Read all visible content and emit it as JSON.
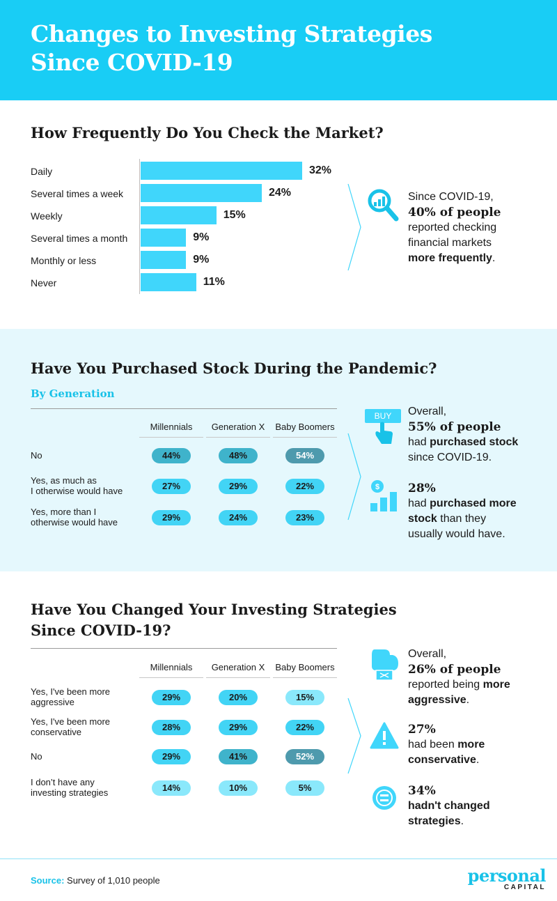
{
  "header": {
    "title_line1": "Changes to Investing Strategies",
    "title_line2": "Since COVID-19"
  },
  "colors": {
    "header_bg": "#19cdf5",
    "bar": "#40d6fb",
    "band_bg": "#e5f8fd",
    "accent": "#19c2e8"
  },
  "section1": {
    "title": "How Frequently Do You Check the Market?",
    "callout": {
      "line1": "Since COVID-19,",
      "line2": "40% of people",
      "line3": "reported checking",
      "line4": "financial markets",
      "line5": "more frequently",
      "line5_tail": "."
    }
  },
  "chart_data": [
    {
      "type": "bar",
      "orientation": "horizontal",
      "title": "How Frequently Do You Check the Market?",
      "categories": [
        "Daily",
        "Several times a week",
        "Weekly",
        "Several times a month",
        "Monthly or less",
        "Never"
      ],
      "values": [
        32,
        24,
        15,
        9,
        9,
        11
      ],
      "value_labels": [
        "32%",
        "24%",
        "15%",
        "9%",
        "9%",
        "11%"
      ],
      "unit": "%"
    },
    {
      "type": "table",
      "title": "Have You Purchased Stock During the Pandemic?",
      "subtitle": "By Generation",
      "columns": [
        "Millennials",
        "Generation X",
        "Baby Boomers"
      ],
      "rows": [
        {
          "label_line1": "No",
          "label_line2": "",
          "values": [
            "44%",
            "48%",
            "54%"
          ],
          "levels": [
            44,
            48,
            54
          ]
        },
        {
          "label_line1": "Yes, as much as",
          "label_line2": "I otherwise would have",
          "values": [
            "27%",
            "29%",
            "22%"
          ],
          "levels": [
            27,
            29,
            22
          ]
        },
        {
          "label_line1": "Yes, more than I",
          "label_line2": "otherwise would have",
          "values": [
            "29%",
            "24%",
            "23%"
          ],
          "levels": [
            29,
            24,
            23
          ]
        }
      ]
    },
    {
      "type": "table",
      "title": "Have You Changed Your Investing Strategies Since COVID-19?",
      "columns": [
        "Millennials",
        "Generation X",
        "Baby Boomers"
      ],
      "rows": [
        {
          "label_line1": "Yes, I've been more",
          "label_line2": "aggressive",
          "values": [
            "29%",
            "20%",
            "15%"
          ],
          "levels": [
            29,
            20,
            15
          ]
        },
        {
          "label_line1": "Yes, I've been more",
          "label_line2": "conservative",
          "values": [
            "28%",
            "29%",
            "22%"
          ],
          "levels": [
            28,
            29,
            22
          ]
        },
        {
          "label_line1": "No",
          "label_line2": "",
          "values": [
            "29%",
            "41%",
            "52%"
          ],
          "levels": [
            29,
            41,
            52
          ]
        },
        {
          "label_line1": "I don’t have any",
          "label_line2": "investing strategies",
          "values": [
            "14%",
            "10%",
            "5%"
          ],
          "levels": [
            14,
            10,
            5
          ]
        }
      ]
    }
  ],
  "section2": {
    "title": "Have You Purchased Stock During the Pandemic?",
    "subtitle": "By Generation",
    "buy_icon_text": "BUY",
    "callout1": {
      "line1": "Overall,",
      "line2": "55% of people",
      "line3_pre": "had ",
      "line3_bold": "purchased stock",
      "line4": "since COVID-19."
    },
    "callout2": {
      "line1": "28%",
      "line2_pre": "had ",
      "line2_bold": "purchased more",
      "line3_bold": "stock",
      "line3_post": " than they",
      "line4": "usually would have."
    }
  },
  "section3": {
    "title_line1": "Have You Changed Your Investing Strategies",
    "title_line2": "Since COVID-19?",
    "callout1": {
      "line1": "Overall,",
      "line2": "26% of people",
      "line3_pre": "reported being ",
      "line3_bold": "more",
      "line4_bold": "aggressive",
      "line4_post": "."
    },
    "callout2": {
      "line1": "27%",
      "line2_pre": "had been ",
      "line2_bold": "more",
      "line3_bold": "conservative",
      "line3_post": "."
    },
    "callout3": {
      "line1": "34%",
      "line2": "hadn't changed",
      "line3": "strategies",
      "line3_post": "."
    }
  },
  "footer": {
    "source_label": "Source:",
    "source_text": "Survey of 1,010 people",
    "logo_line1": "personal",
    "logo_line2": "CAPITAL"
  }
}
